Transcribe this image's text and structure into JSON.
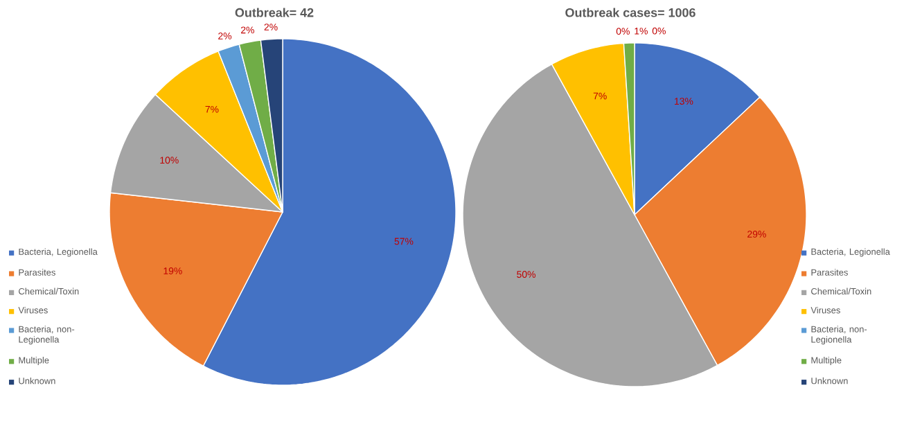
{
  "chart_data": [
    {
      "type": "pie",
      "title": "Outbreak= 42",
      "legend": "left",
      "categories": [
        "Bacteria, Legionella",
        "Parasites",
        "Chemical/Toxin",
        "Viruses",
        "Bacteria, non-Legionella",
        "Multiple",
        "Unknown"
      ],
      "values": [
        57,
        19,
        10,
        7,
        2,
        2,
        2
      ],
      "value_labels": [
        "57%",
        "19%",
        "10%",
        "7%",
        "2%",
        "2%",
        "2%"
      ],
      "colors": [
        "#4472c4",
        "#ed7d31",
        "#a5a5a5",
        "#ffc000",
        "#5b9bd5",
        "#70ad47",
        "#264478"
      ]
    },
    {
      "type": "pie",
      "title": "Outbreak cases= 1006",
      "legend": "right",
      "categories": [
        "Bacteria, Legionella",
        "Parasites",
        "Chemical/Toxin",
        "Viruses",
        "Bacteria, non-Legionella",
        "Multiple",
        "Unknown"
      ],
      "values": [
        13,
        29,
        50,
        7,
        0,
        1,
        0
      ],
      "value_labels": [
        "13%",
        "29%",
        "50%",
        "7%",
        "0%",
        "1%",
        "0%"
      ],
      "colors": [
        "#4472c4",
        "#ed7d31",
        "#a5a5a5",
        "#ffc000",
        "#5b9bd5",
        "#70ad47",
        "#264478"
      ]
    }
  ]
}
